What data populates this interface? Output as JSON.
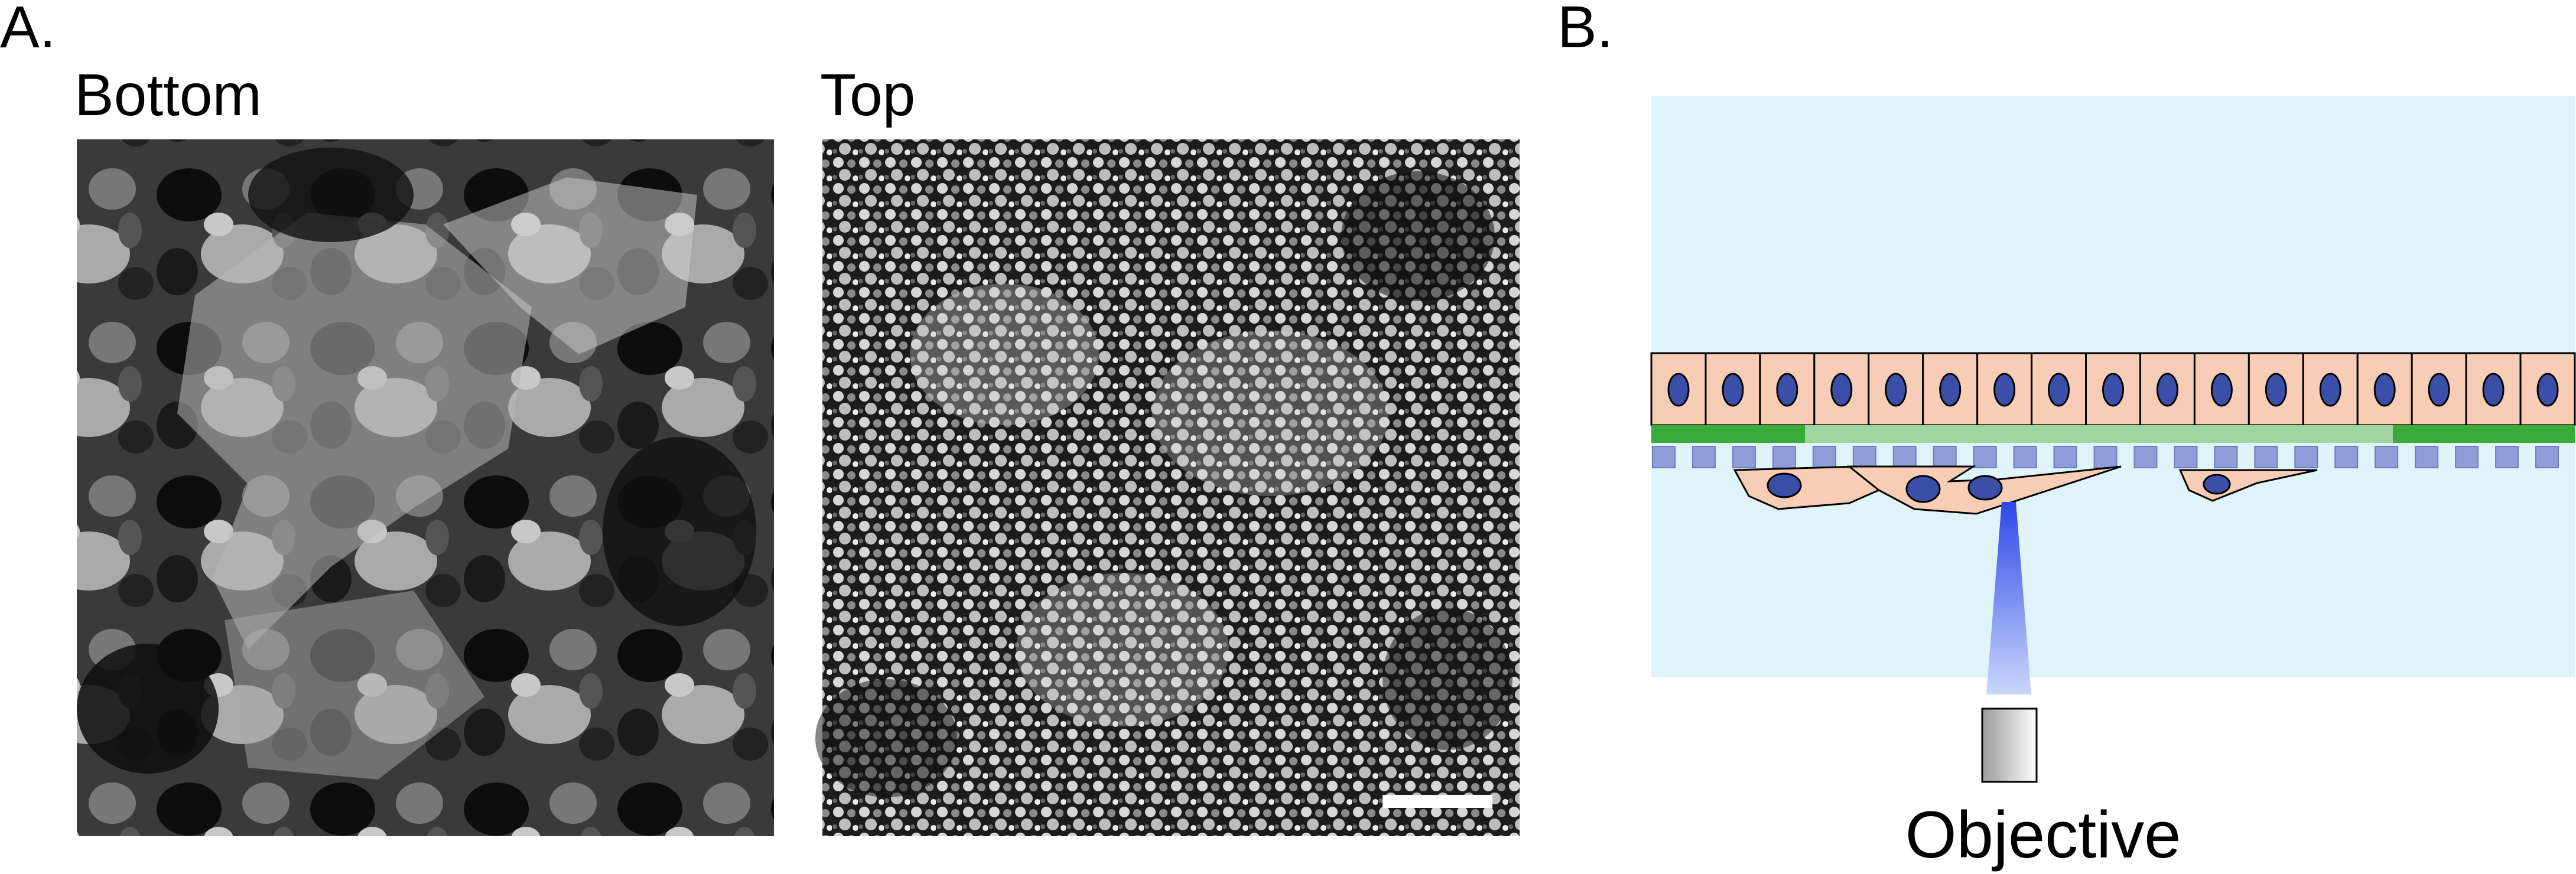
{
  "panel_a": {
    "letter": "A.",
    "bottom_title": "Bottom",
    "top_title": "Top"
  },
  "panel_b": {
    "letter": "B.",
    "objective_label": "Objective"
  },
  "colors": {
    "medium": "#dff4fa",
    "cell_fill": "#f8cdb6",
    "nucleus": "#3c4fa8",
    "membrane_dark": "#3aaa3a",
    "membrane_light": "#9fd69f",
    "pores": "#8f9ed8",
    "beam": "#3550e0"
  }
}
